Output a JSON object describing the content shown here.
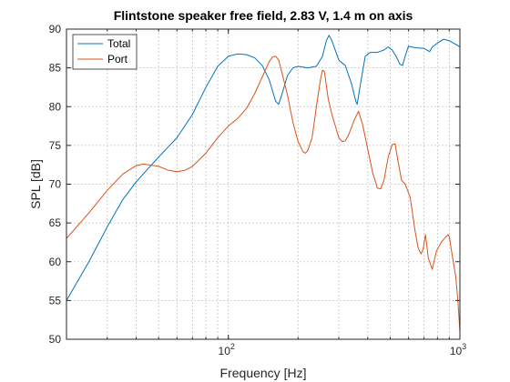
{
  "chart_data": {
    "type": "line",
    "title": "Flintstone speaker free field, 2.83 V, 1.4 m on axis",
    "xlabel": "Frequency [Hz]",
    "ylabel": "SPL [dB]",
    "xscale": "log",
    "xlim": [
      20,
      1000
    ],
    "ylim": [
      50,
      90
    ],
    "yticks": [
      50,
      55,
      60,
      65,
      70,
      75,
      80,
      85,
      90
    ],
    "ytick_labels": [
      "50",
      "55",
      "60",
      "65",
      "70",
      "75",
      "80",
      "85",
      "90"
    ],
    "xticks": [
      {
        "value": 100,
        "base": "10",
        "exp": "2"
      },
      {
        "value": 1000,
        "base": "10",
        "exp": "3"
      }
    ],
    "grid": true,
    "legend_position": "top-left",
    "series": [
      {
        "name": "Total",
        "color": "#0072BD",
        "points": [
          [
            20,
            55
          ],
          [
            25,
            60
          ],
          [
            30,
            64.5
          ],
          [
            35,
            68
          ],
          [
            40,
            70.3
          ],
          [
            45,
            72
          ],
          [
            50,
            73.5
          ],
          [
            55,
            74.8
          ],
          [
            60,
            76
          ],
          [
            70,
            79
          ],
          [
            80,
            82.5
          ],
          [
            90,
            85.2
          ],
          [
            100,
            86.5
          ],
          [
            110,
            86.8
          ],
          [
            120,
            86.7
          ],
          [
            130,
            86.3
          ],
          [
            140,
            85.3
          ],
          [
            150,
            83.5
          ],
          [
            160,
            80.7
          ],
          [
            165,
            80.3
          ],
          [
            170,
            81.5
          ],
          [
            180,
            84
          ],
          [
            190,
            85
          ],
          [
            200,
            85.2
          ],
          [
            220,
            85
          ],
          [
            240,
            85.2
          ],
          [
            255,
            86.5
          ],
          [
            265,
            88.5
          ],
          [
            272,
            89.2
          ],
          [
            280,
            88.5
          ],
          [
            300,
            86
          ],
          [
            320,
            85.3
          ],
          [
            340,
            83
          ],
          [
            355,
            80.7
          ],
          [
            360,
            80.3
          ],
          [
            370,
            82.5
          ],
          [
            390,
            86.5
          ],
          [
            410,
            87
          ],
          [
            440,
            87
          ],
          [
            470,
            87.3
          ],
          [
            490,
            87.7
          ],
          [
            510,
            87.3
          ],
          [
            530,
            86.5
          ],
          [
            550,
            85.5
          ],
          [
            565,
            85.3
          ],
          [
            580,
            86.5
          ],
          [
            600,
            87.8
          ],
          [
            640,
            87.6
          ],
          [
            700,
            87.5
          ],
          [
            740,
            87.1
          ],
          [
            760,
            87.7
          ],
          [
            800,
            88.2
          ],
          [
            850,
            88.7
          ],
          [
            900,
            88.5
          ],
          [
            950,
            88.1
          ],
          [
            1000,
            87.7
          ]
        ]
      },
      {
        "name": "Port",
        "color": "#D95319",
        "points": [
          [
            20,
            63
          ],
          [
            25,
            66.3
          ],
          [
            30,
            69.2
          ],
          [
            35,
            71.3
          ],
          [
            40,
            72.4
          ],
          [
            43,
            72.6
          ],
          [
            50,
            72.3
          ],
          [
            55,
            71.8
          ],
          [
            60,
            71.6
          ],
          [
            65,
            71.8
          ],
          [
            70,
            72.3
          ],
          [
            80,
            74
          ],
          [
            90,
            76
          ],
          [
            100,
            77.5
          ],
          [
            110,
            78.5
          ],
          [
            120,
            79.8
          ],
          [
            130,
            81.7
          ],
          [
            140,
            83.8
          ],
          [
            150,
            85.8
          ],
          [
            155,
            86.4
          ],
          [
            160,
            86.5
          ],
          [
            165,
            86
          ],
          [
            170,
            84.5
          ],
          [
            180,
            81.5
          ],
          [
            190,
            78
          ],
          [
            200,
            75.5
          ],
          [
            210,
            74.2
          ],
          [
            215,
            74
          ],
          [
            220,
            74.3
          ],
          [
            230,
            76
          ],
          [
            240,
            80
          ],
          [
            250,
            83.5
          ],
          [
            255,
            84.7
          ],
          [
            260,
            84.5
          ],
          [
            270,
            81
          ],
          [
            280,
            79
          ],
          [
            300,
            76
          ],
          [
            310,
            75.5
          ],
          [
            320,
            75.6
          ],
          [
            330,
            76.3
          ],
          [
            350,
            78.3
          ],
          [
            365,
            79.4
          ],
          [
            380,
            77.7
          ],
          [
            400,
            74.5
          ],
          [
            420,
            71.5
          ],
          [
            440,
            69.5
          ],
          [
            455,
            69.4
          ],
          [
            470,
            70.5
          ],
          [
            490,
            73.5
          ],
          [
            510,
            75.1
          ],
          [
            525,
            75.2
          ],
          [
            540,
            73
          ],
          [
            560,
            70.5
          ],
          [
            580,
            70
          ],
          [
            610,
            68.3
          ],
          [
            640,
            64
          ],
          [
            660,
            61.8
          ],
          [
            680,
            61
          ],
          [
            695,
            61.7
          ],
          [
            710,
            63.5
          ],
          [
            730,
            60.5
          ],
          [
            760,
            59
          ],
          [
            790,
            61.3
          ],
          [
            830,
            62.5
          ],
          [
            870,
            63.2
          ],
          [
            890,
            63.5
          ],
          [
            900,
            63.2
          ],
          [
            930,
            60.5
          ],
          [
            960,
            58
          ],
          [
            980,
            55
          ],
          [
            1000,
            51
          ],
          [
            1010,
            49.5
          ]
        ]
      }
    ]
  }
}
